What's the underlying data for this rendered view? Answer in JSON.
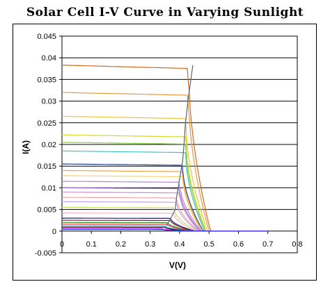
{
  "chart_data": {
    "type": "line",
    "title": "Solar Cell I-V Curve in Varying Sunlight",
    "xlabel": "V(V)",
    "ylabel": "I(A)",
    "xlim": [
      0,
      0.8
    ],
    "ylim": [
      -0.005,
      0.045
    ],
    "x_ticks": [
      "0",
      "0.1",
      "0.2",
      "0.3",
      "0.4",
      "0.5",
      "0.6",
      "0.7",
      "0.8"
    ],
    "y_ticks": [
      "-0.005",
      "0",
      "0.005",
      "0.01",
      "0.015",
      "0.02",
      "0.025",
      "0.03",
      "0.035",
      "0.04",
      "0.045"
    ],
    "grid": "horizontal",
    "legend": "none",
    "series": [
      {
        "color": "#d2691e",
        "isc": 0.0383,
        "voc": 0.505,
        "knee": 0.43
      },
      {
        "color": "#e69a3c",
        "isc": 0.032,
        "voc": 0.5,
        "knee": 0.43
      },
      {
        "color": "#f0c040",
        "isc": 0.0265,
        "voc": 0.495,
        "knee": 0.42
      },
      {
        "color": "#d6d626",
        "isc": 0.0222,
        "voc": 0.49,
        "knee": 0.42
      },
      {
        "color": "#8cd23a",
        "isc": 0.0205,
        "voc": 0.488,
        "knee": 0.42
      },
      {
        "color": "#3ec6c6",
        "isc": 0.0185,
        "voc": 0.485,
        "knee": 0.42
      },
      {
        "color": "#1f3f9a",
        "isc": 0.0155,
        "voc": 0.48,
        "knee": 0.41
      },
      {
        "color": "#f2a23a",
        "isc": 0.014,
        "voc": 0.478,
        "knee": 0.41
      },
      {
        "color": "#f5d36a",
        "isc": 0.0128,
        "voc": 0.476,
        "knee": 0.41
      },
      {
        "color": "#b088d8",
        "isc": 0.0115,
        "voc": 0.474,
        "knee": 0.4
      },
      {
        "color": "#9a6acd",
        "isc": 0.01,
        "voc": 0.47,
        "knee": 0.4
      },
      {
        "color": "#d18ad1",
        "isc": 0.009,
        "voc": 0.468,
        "knee": 0.4
      },
      {
        "color": "#f0a0a0",
        "isc": 0.0078,
        "voc": 0.465,
        "knee": 0.39
      },
      {
        "color": "#c8a0e0",
        "isc": 0.0068,
        "voc": 0.462,
        "knee": 0.39
      },
      {
        "color": "#c8e06a",
        "isc": 0.0055,
        "voc": 0.458,
        "knee": 0.38
      },
      {
        "color": "#f5b0c8",
        "isc": 0.0042,
        "voc": 0.455,
        "knee": 0.38
      },
      {
        "color": "#1f1f6e",
        "isc": 0.003,
        "voc": 0.452,
        "knee": 0.37
      },
      {
        "color": "#7a1f1f",
        "isc": 0.0025,
        "voc": 0.448,
        "knee": 0.37
      },
      {
        "color": "#2f8f2f",
        "isc": 0.002,
        "voc": 0.445,
        "knee": 0.36
      },
      {
        "color": "#e03030",
        "isc": 0.0016,
        "voc": 0.44,
        "knee": 0.36
      },
      {
        "color": "#30a0e0",
        "isc": 0.0012,
        "voc": 0.435,
        "knee": 0.35
      },
      {
        "color": "#000000",
        "isc": 0.0009,
        "voc": 0.43,
        "knee": 0.35
      },
      {
        "color": "#ff00ff",
        "isc": 0.0006,
        "voc": 0.425,
        "knee": 0.34
      },
      {
        "color": "#2040ff",
        "isc": 0.0004,
        "voc": 0.42,
        "knee": 0.34
      }
    ],
    "mpp_trace": {
      "color": "#556677",
      "x": [
        0.355,
        0.37,
        0.385,
        0.39,
        0.4,
        0.41,
        0.415,
        0.42,
        0.43,
        0.445
      ],
      "y": [
        0.0012,
        0.003,
        0.005,
        0.008,
        0.012,
        0.016,
        0.02,
        0.025,
        0.031,
        0.0383
      ]
    }
  }
}
